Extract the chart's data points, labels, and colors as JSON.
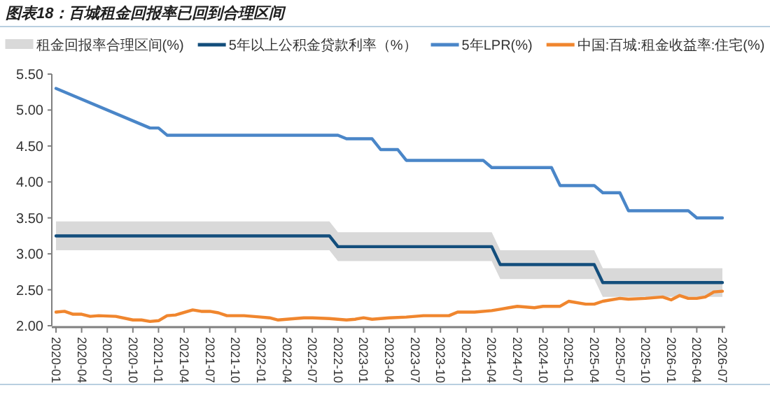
{
  "chart_data": {
    "type": "line",
    "title": "图表18：百城租金回报率已回到合理区间",
    "xlim": [
      "2020-01",
      "2026-07"
    ],
    "xticks": [
      "2020-01",
      "2020-04",
      "2020-07",
      "2020-10",
      "2021-01",
      "2021-04",
      "2021-07",
      "2021-10",
      "2022-01",
      "2022-04",
      "2022-07",
      "2022-10",
      "2023-01",
      "2023-04",
      "2023-07",
      "2023-10",
      "2024-01",
      "2024-04",
      "2024-07",
      "2024-10",
      "2025-01",
      "2025-04",
      "2025-07",
      "2025-10",
      "2026-01",
      "2026-04",
      "2026-07"
    ],
    "ylim": [
      2,
      5.5
    ],
    "yticks": [
      {
        "value": 2,
        "label": "2.00"
      },
      {
        "value": 2.5,
        "label": "2.50"
      },
      {
        "value": 3,
        "label": "3.00"
      },
      {
        "value": 3.5,
        "label": "3.50"
      },
      {
        "value": 4,
        "label": "4.00"
      },
      {
        "value": 4.5,
        "label": "4.50"
      },
      {
        "value": 5,
        "label": "5.00"
      },
      {
        "value": 5.5,
        "label": "5.50"
      }
    ],
    "legend": "top",
    "grid": false,
    "marker": "none",
    "line_style": "solid",
    "series": [
      {
        "type": "area",
        "name": "租金回报率合理区间(%)",
        "color": "#d9d9d9"
      },
      {
        "type": "line",
        "name": "5年以上公积金贷款利率（%）",
        "color": "#134e7c",
        "x": [
          "2020-01",
          "2022-09",
          "2022-10",
          "2024-04",
          "2024-05",
          "2025-04",
          "2025-05",
          "2026-07"
        ],
        "values": [
          3.25,
          3.25,
          3.1,
          3.1,
          2.85,
          2.85,
          2.6,
          2.6
        ],
        "lower": [
          3.05,
          3.05,
          2.9,
          2.9,
          2.65,
          2.65,
          2.4,
          2.4
        ],
        "upper": [
          3.45,
          3.45,
          3.3,
          3.3,
          3.05,
          3.05,
          2.8,
          2.8
        ]
      },
      {
        "type": "line",
        "name": "5年LPR(%)",
        "color": "#4a86c8",
        "x": [
          "2020-01",
          "2020-12",
          "2021-01",
          "2021-02",
          "2022-10",
          "2022-11",
          "2023-02",
          "2023-03",
          "2023-05",
          "2023-06",
          "2024-03",
          "2024-04",
          "2024-11",
          "2024-12",
          "2025-04",
          "2025-05",
          "2025-07",
          "2025-08",
          "2026-03",
          "2026-04",
          "2026-07"
        ],
        "values": [
          5.3,
          4.75,
          4.75,
          4.65,
          4.65,
          4.6,
          4.6,
          4.45,
          4.45,
          4.3,
          4.3,
          4.2,
          4.2,
          3.95,
          3.95,
          3.85,
          3.85,
          3.6,
          3.6,
          3.5,
          3.5
        ]
      },
      {
        "type": "line",
        "name": "中国:百城:租金收益率:住宅(%)",
        "color": "#f0862e",
        "x": [
          "2020-01",
          "2020-02",
          "2020-03",
          "2020-04",
          "2020-05",
          "2020-06",
          "2020-08",
          "2020-10",
          "2020-11",
          "2020-12",
          "2021-01",
          "2021-02",
          "2021-03",
          "2021-05",
          "2021-06",
          "2021-07",
          "2021-08",
          "2021-09",
          "2021-11",
          "2022-01",
          "2022-02",
          "2022-03",
          "2022-04",
          "2022-06",
          "2022-07",
          "2022-09",
          "2022-11",
          "2022-12",
          "2023-01",
          "2023-02",
          "2023-04",
          "2023-06",
          "2023-08",
          "2023-11",
          "2023-12",
          "2024-02",
          "2024-04",
          "2024-05",
          "2024-06",
          "2024-07",
          "2024-09",
          "2024-10",
          "2024-12",
          "2025-01",
          "2025-03",
          "2025-04",
          "2025-05",
          "2025-07",
          "2025-08",
          "2025-10",
          "2025-12",
          "2026-01",
          "2026-02",
          "2026-03",
          "2026-04",
          "2026-05",
          "2026-06",
          "2026-07"
        ],
        "values": [
          2.19,
          2.2,
          2.16,
          2.16,
          2.13,
          2.14,
          2.13,
          2.08,
          2.08,
          2.06,
          2.07,
          2.14,
          2.15,
          2.22,
          2.2,
          2.2,
          2.18,
          2.14,
          2.14,
          2.12,
          2.11,
          2.08,
          2.09,
          2.11,
          2.11,
          2.1,
          2.08,
          2.09,
          2.11,
          2.09,
          2.11,
          2.12,
          2.14,
          2.14,
          2.19,
          2.19,
          2.21,
          2.23,
          2.25,
          2.27,
          2.25,
          2.27,
          2.27,
          2.34,
          2.3,
          2.3,
          2.34,
          2.38,
          2.37,
          2.38,
          2.4,
          2.36,
          2.42,
          2.38,
          2.38,
          2.4,
          2.47,
          2.48
        ]
      }
    ]
  }
}
